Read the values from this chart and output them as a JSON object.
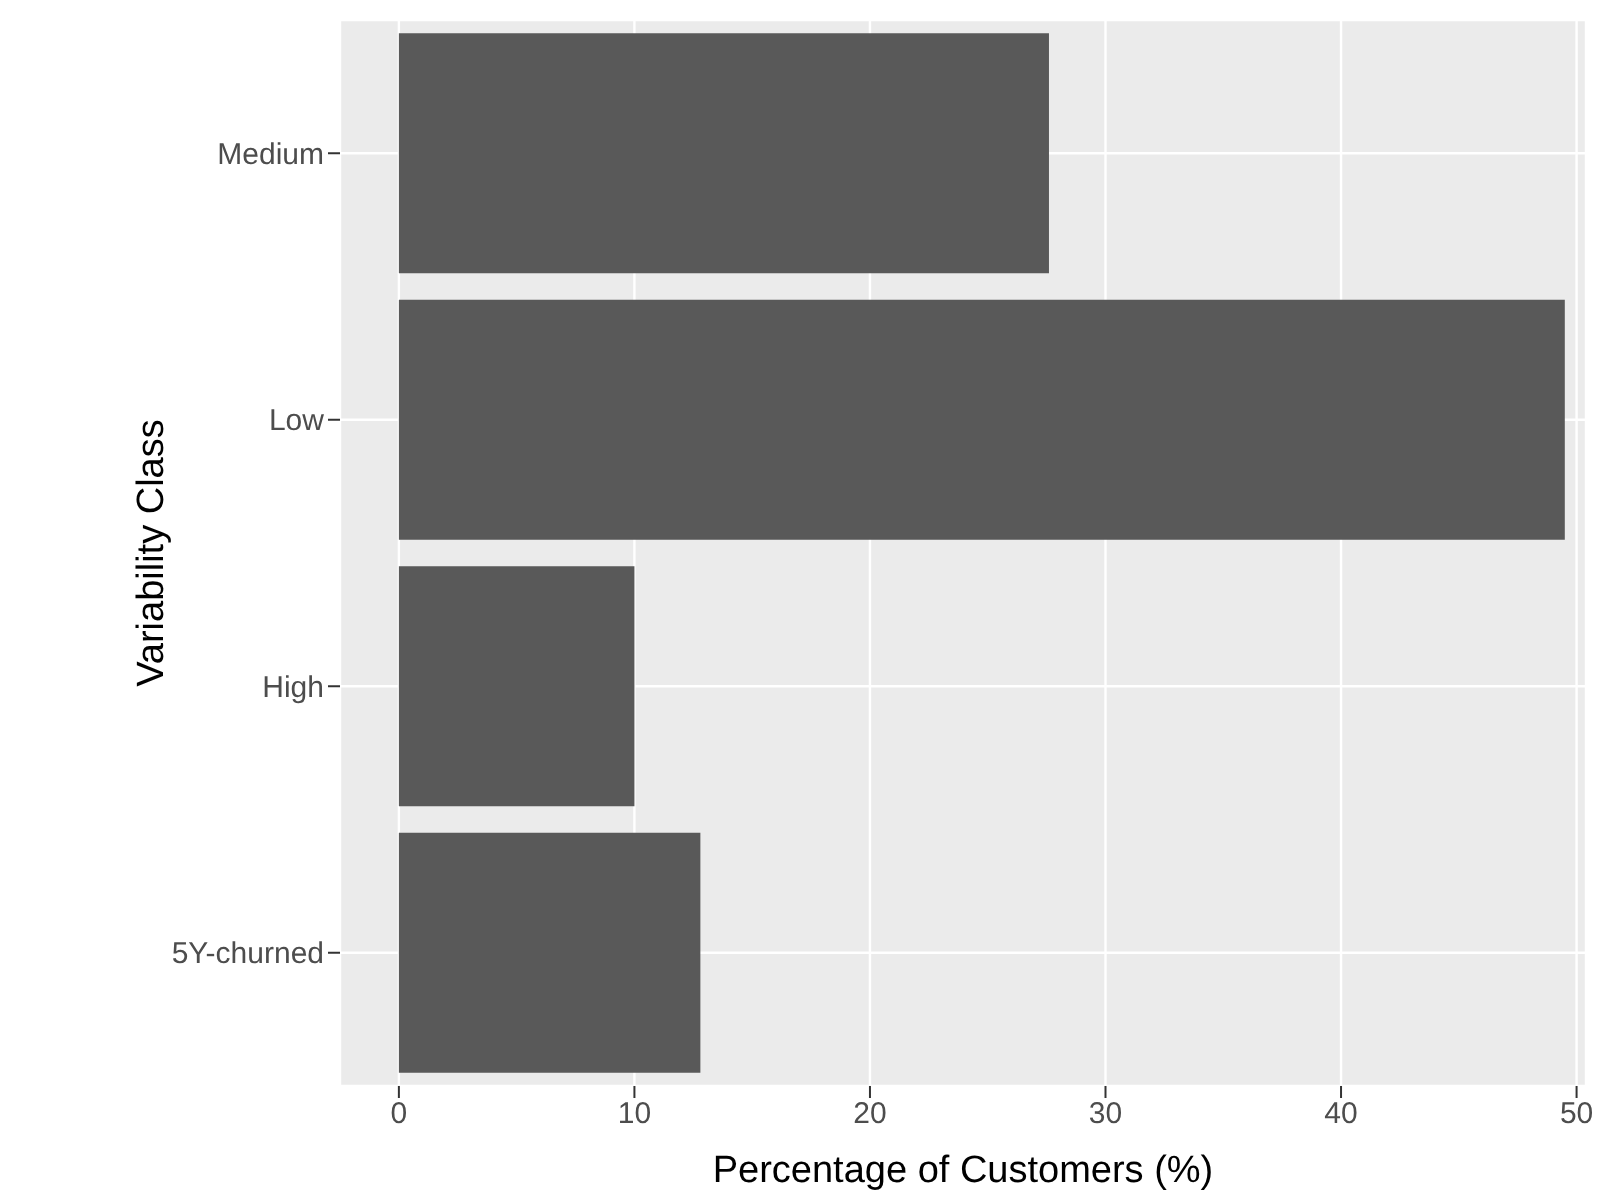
{
  "chart_data": {
    "type": "bar",
    "orientation": "horizontal",
    "xlabel": "Percentage of Customers (%)",
    "ylabel": "Variability Class",
    "categories": [
      "Medium",
      "Low",
      "High",
      "5Y-churned"
    ],
    "values": [
      27.6,
      49.5,
      10.0,
      12.8
    ],
    "color": "#595959",
    "xlim": [
      -2.5,
      50.4
    ],
    "xticks": [
      0,
      10,
      20,
      30,
      40,
      50
    ],
    "grid": true
  }
}
